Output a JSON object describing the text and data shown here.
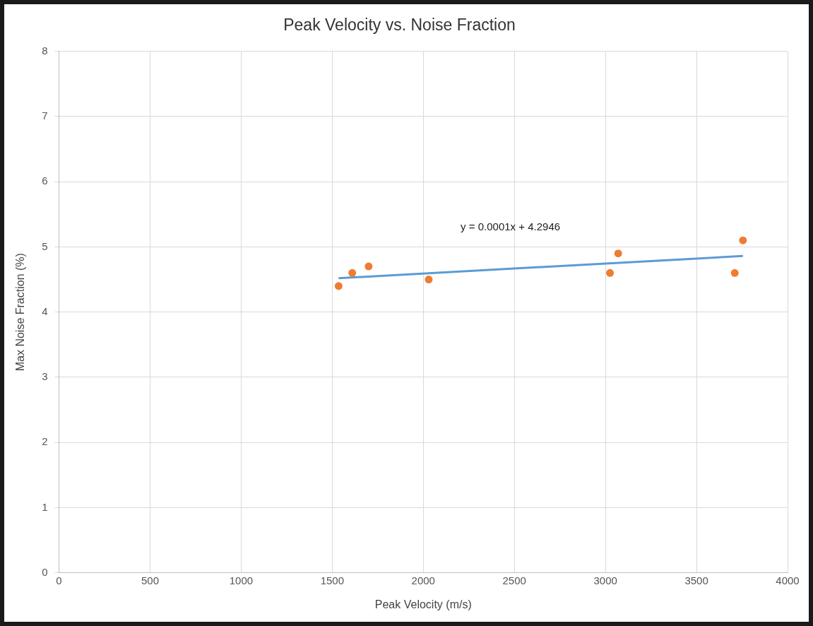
{
  "chart_data": {
    "type": "scatter",
    "title": "Peak Velocity vs. Noise Fraction",
    "xlabel": "Peak Velocity (m/s)",
    "ylabel": "Max Noise Fraction (%)",
    "series": [
      {
        "color": "#ed7d31",
        "marker": "circle",
        "x": [
          1535,
          1610,
          1700,
          2030,
          3025,
          3070,
          3710,
          3755
        ],
        "values": [
          4.4,
          4.6,
          4.7,
          4.5,
          4.6,
          4.9,
          4.6,
          5.1
        ]
      },
      {
        "type": "line",
        "marker": "none",
        "color": "#5b9bd5",
        "x": [
          1535,
          3755
        ],
        "values": [
          4.52,
          4.86
        ]
      }
    ],
    "annotations": [
      "y = 0.0001x + 4.2946"
    ],
    "xlim": [
      0,
      4000
    ],
    "xticks": [
      0,
      500,
      1000,
      1500,
      2000,
      2500,
      3000,
      3500,
      4000
    ],
    "ylim": [
      0,
      8
    ],
    "yticks": [
      0,
      1,
      2,
      3,
      4,
      5,
      6,
      7,
      8
    ],
    "grid": true,
    "legend": false
  }
}
